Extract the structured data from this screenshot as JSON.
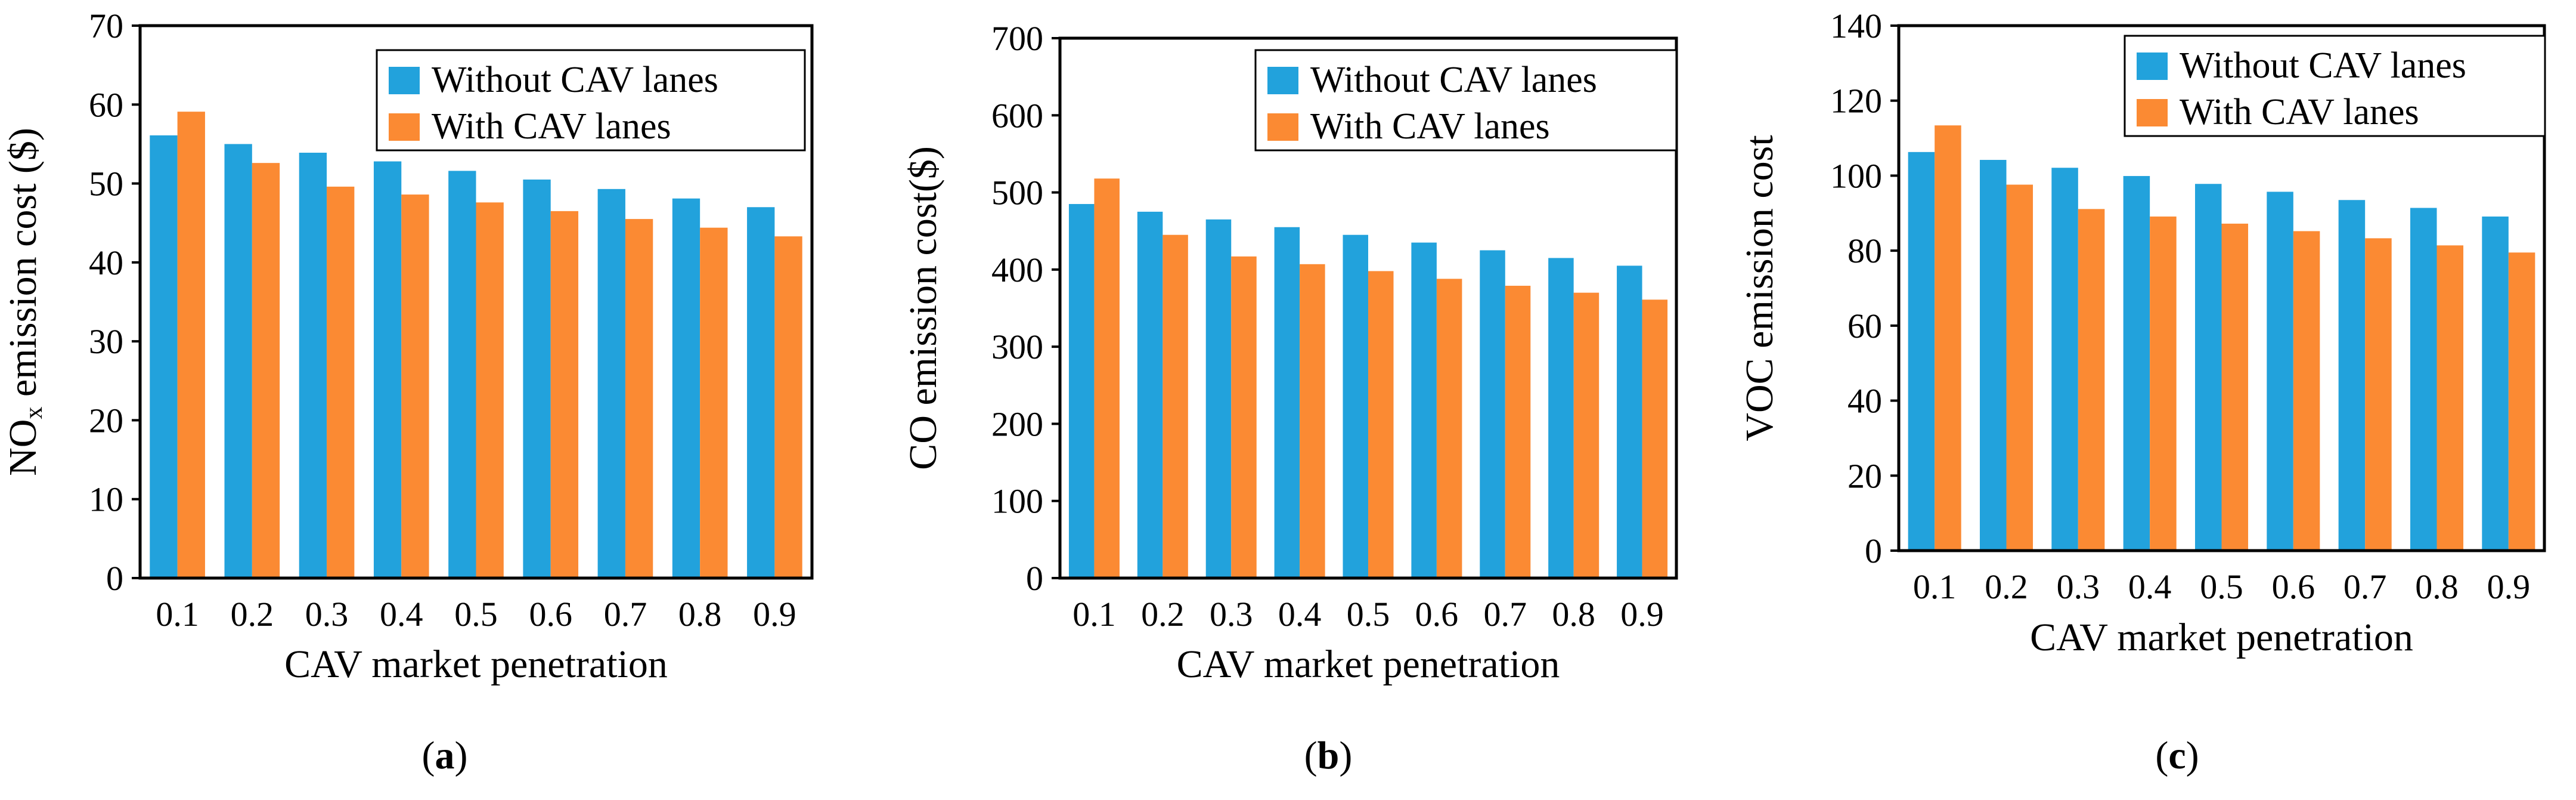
{
  "colors": {
    "without": "#22a2dc",
    "with": "#fb8a33",
    "frame": "#000000",
    "background": "#ffffff"
  },
  "chart_data": [
    {
      "type": "bar",
      "title": "",
      "caption_open": "(",
      "caption_letter": "a",
      "caption_close": ")",
      "xlabel": "CAV  market penetration",
      "ylabel_prefix": "NO",
      "ylabel_sub": "x",
      "ylabel_suffix": " emission cost ($)",
      "ylim": [
        0,
        70
      ],
      "yticks": [
        0,
        10,
        20,
        30,
        40,
        50,
        60,
        70
      ],
      "ytick_labels": [
        "0",
        "10",
        "20",
        "30",
        "40",
        "50",
        "60",
        "70"
      ],
      "categories": [
        "0.1",
        "0.2",
        "0.3",
        "0.4",
        "0.5",
        "0.6",
        "0.7",
        "0.8",
        "0.9"
      ],
      "legend_position": "top-right",
      "series": [
        {
          "name": "Without CAV lanes",
          "values": [
            56.1,
            55.0,
            53.9,
            52.8,
            51.6,
            50.5,
            49.3,
            48.1,
            47.0
          ]
        },
        {
          "name": "With CAV lanes",
          "values": [
            59.1,
            52.6,
            49.6,
            48.6,
            47.6,
            46.5,
            45.5,
            44.4,
            43.3
          ]
        }
      ]
    },
    {
      "type": "bar",
      "title": "",
      "caption_open": "(",
      "caption_letter": "b",
      "caption_close": ")",
      "xlabel": "CAV market penetration",
      "ylabel_prefix": "CO emission cost($)",
      "ylabel_sub": "",
      "ylabel_suffix": "",
      "ylim": [
        0,
        700
      ],
      "yticks": [
        0,
        100,
        200,
        300,
        400,
        500,
        600,
        700
      ],
      "ytick_labels": [
        "0",
        "100",
        "200",
        "300",
        "400",
        "500",
        "600",
        "700"
      ],
      "categories": [
        "0.1",
        "0.2",
        "0.3",
        "0.4",
        "0.5",
        "0.6",
        "0.7",
        "0.8",
        "0.9"
      ],
      "legend_position": "top-right",
      "series": [
        {
          "name": "Without CAV lanes",
          "values": [
            485,
            475,
            465,
            455,
            445,
            435,
            425,
            415,
            405
          ]
        },
        {
          "name": "With CAV lanes",
          "values": [
            518,
            445,
            417,
            407,
            398,
            388,
            379,
            370,
            361
          ]
        }
      ]
    },
    {
      "type": "bar",
      "title": "",
      "caption_open": "(",
      "caption_letter": "c",
      "caption_close": ")",
      "xlabel": "CAV market penetration",
      "ylabel_prefix": "VOC emission cost",
      "ylabel_sub": "",
      "ylabel_suffix": "",
      "ylim": [
        0,
        140
      ],
      "yticks": [
        0,
        20,
        40,
        60,
        80,
        100,
        120,
        140
      ],
      "ytick_labels": [
        "0",
        "20",
        "40",
        "60",
        "80",
        "100",
        "120",
        "140"
      ],
      "categories": [
        "0.1",
        "0.2",
        "0.3",
        "0.4",
        "0.5",
        "0.6",
        "0.7",
        "0.8",
        "0.9"
      ],
      "legend_position": "top-right",
      "series": [
        {
          "name": "Without CAV lanes",
          "values": [
            106.3,
            104.2,
            102.1,
            99.9,
            97.8,
            95.7,
            93.5,
            91.4,
            89.1
          ]
        },
        {
          "name": "With CAV lanes",
          "values": [
            113.4,
            97.6,
            91.1,
            89.1,
            87.2,
            85.2,
            83.3,
            81.4,
            79.5
          ]
        }
      ]
    }
  ]
}
